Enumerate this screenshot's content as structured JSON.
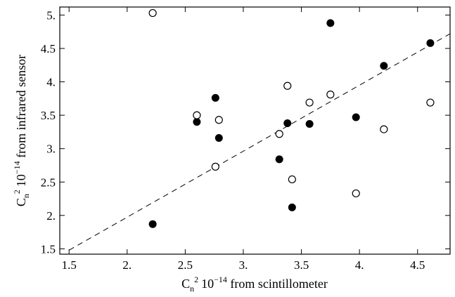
{
  "chart_data": {
    "type": "scatter",
    "xlabel": {
      "base": "C",
      "sub": "n",
      "sup_exp": "2",
      "mantissa": "10",
      "sup_power": "−14",
      "rest": " from scintillometer"
    },
    "ylabel": {
      "base": "C",
      "sub": "n",
      "sup_exp": "2",
      "mantissa": "10",
      "sup_power": "−14",
      "rest": " from infrared sensor"
    },
    "xlim": [
      1.42,
      4.78
    ],
    "ylim": [
      1.42,
      5.12
    ],
    "xticks": [
      1.5,
      2,
      2.5,
      3,
      3.5,
      4,
      4.5
    ],
    "xtick_labels": [
      "1.5",
      "2.",
      "2.5",
      "3.",
      "3.5",
      "4.",
      "4.5"
    ],
    "yticks": [
      1.5,
      2,
      2.5,
      3,
      3.5,
      4,
      4.5,
      5
    ],
    "ytick_labels": [
      "1.5",
      "2.",
      "2.5",
      "3.",
      "3.5",
      "4.",
      "4.5",
      "5."
    ],
    "grid": false,
    "fit_line": {
      "style": "dashed",
      "x": [
        1.5,
        4.78
      ],
      "y": [
        1.48,
        4.72
      ]
    },
    "series": [
      {
        "marker": "filled-circle",
        "points": [
          [
            2.22,
            1.87
          ],
          [
            2.6,
            3.4
          ],
          [
            2.76,
            3.76
          ],
          [
            2.79,
            3.16
          ],
          [
            3.31,
            2.84
          ],
          [
            3.38,
            3.38
          ],
          [
            3.42,
            2.12
          ],
          [
            3.57,
            3.37
          ],
          [
            3.75,
            4.88
          ],
          [
            3.97,
            3.47
          ],
          [
            4.21,
            4.24
          ],
          [
            4.61,
            4.58
          ]
        ]
      },
      {
        "marker": "open-circle",
        "points": [
          [
            2.22,
            5.03
          ],
          [
            2.6,
            3.5
          ],
          [
            2.76,
            2.73
          ],
          [
            2.79,
            3.43
          ],
          [
            3.31,
            3.22
          ],
          [
            3.38,
            3.94
          ],
          [
            3.42,
            2.54
          ],
          [
            3.57,
            3.69
          ],
          [
            3.75,
            3.81
          ],
          [
            3.97,
            2.33
          ],
          [
            4.21,
            3.29
          ],
          [
            4.61,
            3.69
          ]
        ]
      }
    ]
  }
}
